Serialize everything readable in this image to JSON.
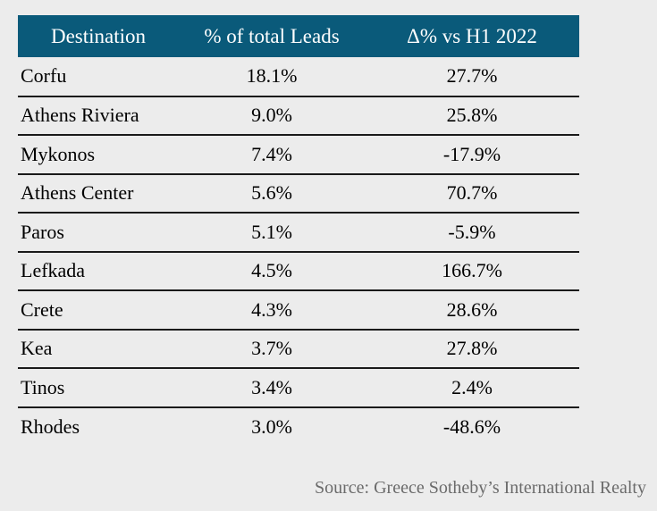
{
  "colors": {
    "page_bg": "#ececec",
    "header_bg": "#0a5a7a",
    "header_text": "#ffffff",
    "row_line": "#1a1a1a",
    "body_text": "#000000",
    "source_text": "#6b6b6b"
  },
  "table": {
    "columns": [
      {
        "key": "destination",
        "label": "Destination"
      },
      {
        "key": "leads",
        "label": "% of total Leads"
      },
      {
        "key": "delta",
        "label": "Δ% vs H1 2022"
      }
    ],
    "rows": [
      {
        "destination": "Corfu",
        "leads": "18.1%",
        "delta": "27.7%"
      },
      {
        "destination": "Athens Riviera",
        "leads": "9.0%",
        "delta": "25.8%"
      },
      {
        "destination": "Mykonos",
        "leads": "7.4%",
        "delta": "-17.9%"
      },
      {
        "destination": "Athens Center",
        "leads": "5.6%",
        "delta": "70.7%"
      },
      {
        "destination": "Paros",
        "leads": "5.1%",
        "delta": "-5.9%"
      },
      {
        "destination": "Lefkada",
        "leads": "4.5%",
        "delta": "166.7%"
      },
      {
        "destination": "Crete",
        "leads": "4.3%",
        "delta": "28.6%"
      },
      {
        "destination": "Kea",
        "leads": "3.7%",
        "delta": "27.8%"
      },
      {
        "destination": "Tinos",
        "leads": "3.4%",
        "delta": "2.4%"
      },
      {
        "destination": "Rhodes",
        "leads": "3.0%",
        "delta": "-48.6%"
      }
    ]
  },
  "source": {
    "text": "Source: Greece Sotheby’s International Realty"
  },
  "chart_data": {
    "type": "table",
    "title": "",
    "columns": [
      "Destination",
      "% of total Leads",
      "Δ% vs H1 2022"
    ],
    "rows": [
      [
        "Corfu",
        18.1,
        27.7
      ],
      [
        "Athens Riviera",
        9.0,
        25.8
      ],
      [
        "Mykonos",
        7.4,
        -17.9
      ],
      [
        "Athens Center",
        5.6,
        70.7
      ],
      [
        "Paros",
        5.1,
        -5.9
      ],
      [
        "Lefkada",
        4.5,
        166.7
      ],
      [
        "Crete",
        4.3,
        28.6
      ],
      [
        "Kea",
        3.7,
        27.8
      ],
      [
        "Tinos",
        3.4,
        2.4
      ],
      [
        "Rhodes",
        3.0,
        -48.6
      ]
    ],
    "units": "percent",
    "source": "Source: Greece Sotheby’s International Realty"
  }
}
